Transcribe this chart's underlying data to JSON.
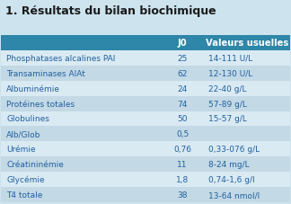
{
  "title": "1. Résultats du bilan biochimique",
  "header": [
    "",
    "J0",
    "Valeurs usuelles"
  ],
  "rows": [
    [
      "Phosphatases alcalines PAl",
      "25",
      "14-111 U/L"
    ],
    [
      "Transaminases AlAt",
      "62",
      "12-130 U/L"
    ],
    [
      "Albuminémie",
      "24",
      "22-40 g/L"
    ],
    [
      "Protéines totales",
      "74",
      "57-89 g/L"
    ],
    [
      "Globulines",
      "50",
      "15-57 g/L"
    ],
    [
      "Alb/Glob",
      "0,5",
      ""
    ],
    [
      "Urémie",
      "0,76",
      "0,33-076 g/L"
    ],
    [
      "Créatininémie",
      "11",
      "8-24 mg/L"
    ],
    [
      "Glycémie",
      "1,8",
      "0,74-1,6 g/l"
    ],
    [
      "T4 totale",
      "38",
      "13-64 nmol/l"
    ]
  ],
  "header_bg": "#2e86a8",
  "header_fg": "#ffffff",
  "row_bg_light": "#daeaf2",
  "row_bg_mid": "#c3d9e5",
  "page_bg": "#cde3ed",
  "title_color": "#1a1a1a",
  "cell_text_color": "#2060a0",
  "title_fontsize": 9.0,
  "cell_fontsize": 6.5,
  "header_fontsize": 7.2
}
